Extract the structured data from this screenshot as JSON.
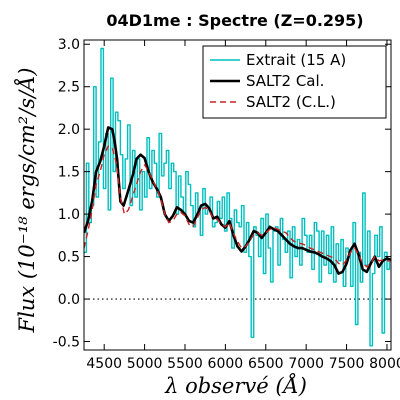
{
  "chart_data": {
    "type": "line",
    "title": "04D1me : Spectre (Z=0.295)",
    "xlabel": "λ observé (Å)",
    "ylabel": "Flux (10⁻¹⁸ ergs/cm²/s/Å)",
    "xlim": [
      4250,
      8050
    ],
    "ylim": [
      -0.6,
      3.05
    ],
    "xticks": [
      4500,
      5000,
      5500,
      6000,
      6500,
      7000,
      7500,
      8000
    ],
    "xtick_labels": [
      "4500",
      "5000",
      "5500",
      "6000",
      "6500",
      "7000",
      "7500",
      "8000"
    ],
    "yticks": [
      -0.5,
      0.0,
      0.5,
      1.0,
      1.5,
      2.0,
      2.5,
      3.0
    ],
    "ytick_labels": [
      "-0.5",
      "0.0",
      "0.5",
      "1.0",
      "1.5",
      "2.0",
      "2.5",
      "3.0"
    ],
    "zero_line": 0.0,
    "grid": false,
    "legend_position": "top-right",
    "series": [
      {
        "name": "Extrait (15 A)",
        "color": "#00bfbf",
        "style": "steps",
        "x": [
          4250,
          4280,
          4310,
          4340,
          4370,
          4400,
          4430,
          4460,
          4490,
          4520,
          4550,
          4580,
          4610,
          4640,
          4670,
          4700,
          4730,
          4760,
          4790,
          4820,
          4850,
          4880,
          4910,
          4940,
          4970,
          5000,
          5030,
          5060,
          5090,
          5120,
          5150,
          5180,
          5210,
          5240,
          5270,
          5300,
          5330,
          5360,
          5390,
          5420,
          5450,
          5480,
          5510,
          5540,
          5570,
          5600,
          5630,
          5660,
          5690,
          5720,
          5750,
          5780,
          5810,
          5840,
          5870,
          5900,
          5930,
          5960,
          5990,
          6020,
          6050,
          6080,
          6110,
          6140,
          6170,
          6200,
          6230,
          6260,
          6290,
          6320,
          6350,
          6380,
          6410,
          6440,
          6470,
          6500,
          6530,
          6560,
          6590,
          6620,
          6650,
          6680,
          6710,
          6740,
          6770,
          6800,
          6830,
          6860,
          6890,
          6920,
          6950,
          6980,
          7010,
          7040,
          7070,
          7100,
          7130,
          7160,
          7190,
          7220,
          7250,
          7280,
          7310,
          7340,
          7370,
          7400,
          7430,
          7460,
          7490,
          7520,
          7550,
          7580,
          7610,
          7640,
          7670,
          7700,
          7730,
          7760,
          7790,
          7820,
          7850,
          7880,
          7910,
          7940,
          7970,
          8000,
          8030
        ],
        "y": [
          0.55,
          1.6,
          0.9,
          1.1,
          2.5,
          1.2,
          1.85,
          2.95,
          1.3,
          1.95,
          1.05,
          2.6,
          1.5,
          2.2,
          2.1,
          1.7,
          1.3,
          1.65,
          2.05,
          1.1,
          1.75,
          1.2,
          1.65,
          1.05,
          1.5,
          1.2,
          1.9,
          1.3,
          1.75,
          1.6,
          1.2,
          1.95,
          1.45,
          1.6,
          1.75,
          1.3,
          1.6,
          1.5,
          1.0,
          1.45,
          1.2,
          1.0,
          1.5,
          1.35,
          1.1,
          0.85,
          1.25,
          1.05,
          0.75,
          1.3,
          1.0,
          1.05,
          1.2,
          0.85,
          0.9,
          1.15,
          0.95,
          1.2,
          0.8,
          1.25,
          0.95,
          0.6,
          1.05,
          0.9,
          0.85,
          1.1,
          0.55,
          0.9,
          0.5,
          -0.45,
          0.85,
          0.75,
          0.5,
          0.95,
          0.3,
          1.0,
          0.6,
          0.2,
          0.8,
          0.85,
          0.4,
          0.95,
          0.7,
          0.55,
          0.8,
          0.25,
          0.85,
          0.5,
          0.7,
          0.4,
          0.95,
          0.75,
          0.55,
          0.75,
          0.35,
          0.9,
          0.8,
          0.2,
          0.8,
          0.4,
          0.75,
          0.3,
          0.85,
          0.2,
          0.65,
          0.45,
          0.7,
          0.15,
          0.6,
          0.55,
          0.15,
          0.9,
          -0.3,
          0.55,
          0.2,
          1.25,
          0.4,
          0.8,
          -0.55,
          0.3,
          0.75,
          0.5,
          0.85,
          -0.4,
          0.55,
          0.35,
          0.45
        ]
      },
      {
        "name": "SALT2 Cal.",
        "color": "#000000",
        "style": "solid",
        "x": [
          4250,
          4300,
          4350,
          4400,
          4450,
          4500,
          4550,
          4600,
          4630,
          4660,
          4680,
          4700,
          4740,
          4780,
          4820,
          4860,
          4900,
          4950,
          5000,
          5050,
          5100,
          5150,
          5200,
          5250,
          5300,
          5350,
          5400,
          5450,
          5500,
          5550,
          5600,
          5650,
          5700,
          5750,
          5800,
          5850,
          5900,
          5950,
          6000,
          6050,
          6100,
          6150,
          6200,
          6250,
          6300,
          6350,
          6400,
          6450,
          6500,
          6550,
          6600,
          6650,
          6700,
          6750,
          6800,
          6850,
          6900,
          6950,
          7000,
          7050,
          7100,
          7150,
          7200,
          7250,
          7300,
          7350,
          7400,
          7450,
          7500,
          7550,
          7600,
          7650,
          7700,
          7750,
          7800,
          7850,
          7900,
          7950,
          8000,
          8050
        ],
        "y": [
          0.78,
          0.92,
          1.15,
          1.5,
          1.62,
          1.8,
          2.02,
          2.0,
          1.85,
          1.65,
          1.4,
          1.15,
          1.1,
          1.22,
          1.35,
          1.48,
          1.65,
          1.7,
          1.66,
          1.5,
          1.38,
          1.3,
          1.2,
          1.0,
          0.92,
          0.98,
          1.08,
          1.05,
          1.0,
          0.92,
          0.9,
          0.99,
          1.1,
          1.12,
          1.07,
          0.95,
          0.97,
          0.88,
          0.84,
          0.92,
          0.75,
          0.62,
          0.56,
          0.62,
          0.7,
          0.8,
          0.78,
          0.72,
          0.78,
          0.85,
          0.82,
          0.8,
          0.75,
          0.7,
          0.65,
          0.62,
          0.6,
          0.6,
          0.58,
          0.56,
          0.55,
          0.53,
          0.5,
          0.48,
          0.45,
          0.4,
          0.3,
          0.32,
          0.42,
          0.58,
          0.65,
          0.52,
          0.35,
          0.32,
          0.42,
          0.5,
          0.38,
          0.45,
          0.48,
          0.46
        ]
      },
      {
        "name": "SALT2 (C.L.)",
        "color": "#cc2222",
        "style": "dashed",
        "x": [
          4250,
          4300,
          4350,
          4400,
          4450,
          4500,
          4550,
          4600,
          4650,
          4700,
          4750,
          4800,
          4850,
          4900,
          4950,
          5000,
          5050,
          5100,
          5150,
          5200,
          5250,
          5300,
          5350,
          5400,
          5450,
          5500,
          5550,
          5600,
          5650,
          5700,
          5750,
          5800,
          5850,
          5900,
          5950,
          6000,
          6050,
          6100,
          6150,
          6200,
          6250,
          6300,
          6350,
          6400,
          6450,
          6500,
          6550,
          6600,
          6650,
          6700,
          6750,
          6800,
          6850,
          6900,
          6950,
          7000,
          7050,
          7100,
          7150,
          7200,
          7250,
          7300,
          7350,
          7400,
          7450,
          7500,
          7550,
          7600,
          7650,
          7700,
          7750,
          7800,
          7850,
          7900,
          7950,
          8000,
          8050
        ],
        "y": [
          0.6,
          0.8,
          1.05,
          1.35,
          1.5,
          1.7,
          1.8,
          1.78,
          1.6,
          1.2,
          1.0,
          1.05,
          1.2,
          1.35,
          1.5,
          1.58,
          1.5,
          1.4,
          1.3,
          1.18,
          1.0,
          0.9,
          0.92,
          1.0,
          1.02,
          0.98,
          0.88,
          0.85,
          0.95,
          1.05,
          1.08,
          1.04,
          0.95,
          0.94,
          0.88,
          0.85,
          0.9,
          0.77,
          0.68,
          0.6,
          0.62,
          0.68,
          0.76,
          0.78,
          0.75,
          0.78,
          0.82,
          0.84,
          0.82,
          0.8,
          0.78,
          0.72,
          0.68,
          0.66,
          0.65,
          0.63,
          0.6,
          0.58,
          0.56,
          0.54,
          0.52,
          0.5,
          0.48,
          0.42,
          0.4,
          0.46,
          0.55,
          0.6,
          0.52,
          0.42,
          0.38,
          0.42,
          0.5,
          0.45,
          0.46,
          0.45,
          0.45
        ]
      }
    ]
  }
}
